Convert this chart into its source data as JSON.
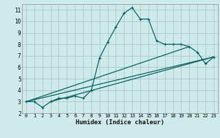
{
  "xlabel": "Humidex (Indice chaleur)",
  "bg_color": "#ceeaea",
  "grid_color": "#aac8c8",
  "line_color": "#006060",
  "marker": "+",
  "series": [
    [
      0,
      3.0
    ],
    [
      1,
      3.0
    ],
    [
      2,
      2.5
    ],
    [
      3,
      3.0
    ],
    [
      4,
      3.3
    ],
    [
      5,
      3.3
    ],
    [
      6,
      3.5
    ],
    [
      7,
      3.3
    ],
    [
      8,
      4.0
    ],
    [
      9,
      6.8
    ],
    [
      10,
      8.2
    ],
    [
      11,
      9.5
    ],
    [
      12,
      10.7
    ],
    [
      13,
      11.2
    ],
    [
      14,
      10.2
    ],
    [
      15,
      10.2
    ],
    [
      16,
      8.3
    ],
    [
      17,
      8.0
    ],
    [
      18,
      8.0
    ],
    [
      19,
      8.0
    ],
    [
      20,
      7.8
    ],
    [
      21,
      7.3
    ],
    [
      22,
      6.3
    ],
    [
      23,
      6.9
    ]
  ],
  "line2": [
    [
      0,
      3.0
    ],
    [
      23,
      6.9
    ]
  ],
  "line3": [
    [
      0,
      3.0
    ],
    [
      20,
      7.8
    ]
  ],
  "line4": [
    [
      3,
      3.0
    ],
    [
      23,
      6.9
    ]
  ],
  "xlim": [
    -0.5,
    23.5
  ],
  "ylim": [
    2,
    11.5
  ],
  "xticks": [
    0,
    1,
    2,
    3,
    4,
    5,
    6,
    7,
    8,
    9,
    10,
    11,
    12,
    13,
    14,
    15,
    16,
    17,
    18,
    19,
    20,
    21,
    22,
    23
  ],
  "yticks": [
    2,
    3,
    4,
    5,
    6,
    7,
    8,
    9,
    10,
    11
  ]
}
